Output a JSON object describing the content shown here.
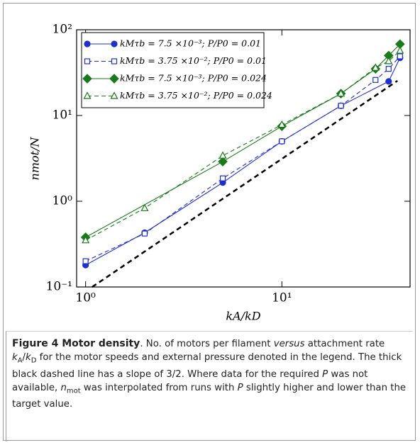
{
  "chart_data": {
    "type": "line",
    "xlabel": "kA/kD",
    "ylabel": "nmot/N",
    "xscale": "log",
    "yscale": "log",
    "xlim": [
      0.9,
      45
    ],
    "ylim": [
      0.1,
      100
    ],
    "xticks": [
      {
        "value": 1,
        "label": "10⁰"
      },
      {
        "value": 10,
        "label": "10¹"
      }
    ],
    "yticks": [
      {
        "value": 0.1,
        "label": "10⁻¹"
      },
      {
        "value": 1,
        "label": "10⁰"
      },
      {
        "value": 10,
        "label": "10¹"
      },
      {
        "value": 100,
        "label": "10²"
      }
    ],
    "legend": "upper left",
    "series": [
      {
        "name": "kMτb = 7.5 ×10⁻³; P/P0 = 0.01",
        "color": "#1f2fcc",
        "marker": "circle",
        "filled": true,
        "linestyle": "solid",
        "x": [
          1,
          2,
          5,
          10,
          20,
          35,
          40
        ],
        "values": [
          0.18,
          0.43,
          1.65,
          5.0,
          13,
          25,
          47
        ]
      },
      {
        "name": "kMτb = 3.75 ×10⁻²; P/P0 = 0.01",
        "color": "#1f2fcc",
        "marker": "square",
        "filled": false,
        "linestyle": "dashed",
        "x": [
          1,
          2,
          5,
          10,
          20,
          30,
          35,
          40
        ],
        "values": [
          0.2,
          0.42,
          1.85,
          5.0,
          13,
          26,
          35,
          49
        ]
      },
      {
        "name": "kMτb = 7.5 ×10⁻³; P/P0 = 0.024",
        "color": "#1a7a1a",
        "marker": "diamond",
        "filled": true,
        "linestyle": "solid",
        "x": [
          1,
          5,
          10,
          20,
          30,
          35,
          40
        ],
        "values": [
          0.38,
          2.9,
          7.5,
          18,
          35,
          50,
          68
        ]
      },
      {
        "name": "kMτb = 3.75 ×10⁻²; P/P0 = 0.024",
        "color": "#1a7a1a",
        "marker": "triangle",
        "filled": false,
        "linestyle": "dashed",
        "x": [
          1,
          2,
          5,
          10,
          20,
          30,
          35,
          40
        ],
        "values": [
          0.35,
          0.83,
          3.4,
          7.8,
          18,
          36,
          43,
          57
        ]
      },
      {
        "color": "#000000",
        "marker": "none",
        "linestyle": "thick-dashed",
        "x": [
          1.08,
          38.8
        ],
        "values": [
          0.1,
          25.4
        ]
      }
    ]
  },
  "caption": {
    "label": "Figure 4 Motor density",
    "segments": [
      {
        "text": ". No. of motors per filament "
      },
      {
        "text": "versus",
        "style": "i"
      },
      {
        "text": " attachment rate "
      },
      {
        "text": "k",
        "style": "i"
      },
      {
        "text": "A",
        "style": "sub"
      },
      {
        "text": "/"
      },
      {
        "text": "k",
        "style": "i"
      },
      {
        "text": "D",
        "style": "sub"
      },
      {
        "text": " for the motor speeds and external pressure denoted in the legend. The thick black dashed line has a slope of 3/2. Where data for the required "
      },
      {
        "text": "P",
        "style": "i"
      },
      {
        "text": " was not available, "
      },
      {
        "text": "n",
        "style": "i"
      },
      {
        "text": "mot",
        "style": "sub"
      },
      {
        "text": " was interpolated from runs with "
      },
      {
        "text": "P",
        "style": "i"
      },
      {
        "text": " slightly higher and lower than the target value."
      }
    ]
  }
}
